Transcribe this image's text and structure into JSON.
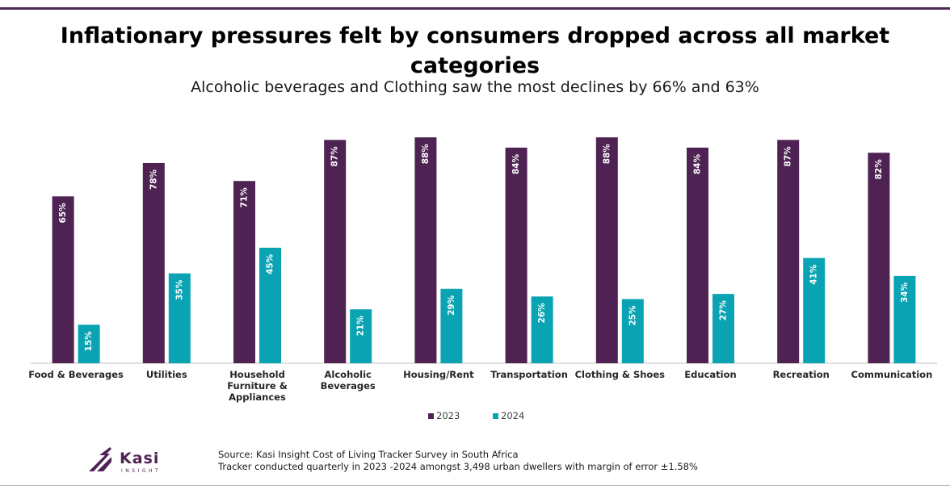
{
  "title": "Inflationary pressures felt by consumers dropped across all market categories",
  "subtitle": "Alcoholic beverages and Clothing saw the most declines by 66% and 63%",
  "chart_data": {
    "type": "bar",
    "categories": [
      [
        "Food & Beverages"
      ],
      [
        "Utilities"
      ],
      [
        "Household",
        "Furniture &",
        "Appliances"
      ],
      [
        "Alcoholic",
        "Beverages"
      ],
      [
        "Housing/Rent"
      ],
      [
        "Transportation"
      ],
      [
        "Clothing & Shoes"
      ],
      [
        "Education"
      ],
      [
        "Recreation"
      ],
      [
        "Communication"
      ]
    ],
    "series": [
      {
        "name": "2023",
        "color": "#4e2353",
        "values": [
          65,
          78,
          71,
          87,
          88,
          84,
          88,
          84,
          87,
          82
        ]
      },
      {
        "name": "2024",
        "color": "#0aa3b3",
        "values": [
          15,
          35,
          45,
          21,
          29,
          26,
          25,
          27,
          41,
          34
        ]
      }
    ],
    "value_suffix": "%",
    "ylim": [
      0,
      100
    ],
    "grid": false,
    "legend_position": "bottom-center"
  },
  "logo": {
    "name": "Kasi",
    "tagline": "INSIGHT",
    "color": "#4e2353"
  },
  "footer": {
    "source": "Source: Kasi Insight Cost of Living Tracker Survey in South Africa",
    "note": "Tracker conducted quarterly in 2023 -2024 amongst 3,498 urban dwellers with margin of error ±1.58%"
  }
}
